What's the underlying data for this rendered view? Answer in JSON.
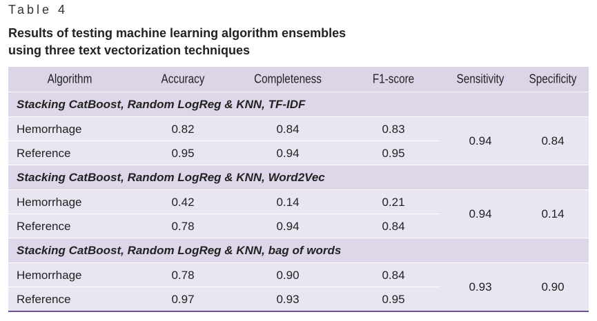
{
  "header": {
    "label": "Table 4",
    "title": [
      "Results of testing machine learning algorithm ensembles",
      "using three text vectorization techniques"
    ]
  },
  "table": {
    "columns": [
      "Algorithm",
      "Accuracy",
      "Completeness",
      "F1-score",
      "Sensitivity",
      "Specificity"
    ],
    "groups": [
      {
        "title": "Stacking CatBoost, Random LogReg & KNN, TF-IDF",
        "rows": [
          [
            "Hemorrhage",
            "0.82",
            "0.84",
            "0.83"
          ],
          [
            "Reference",
            "0.95",
            "0.94",
            "0.95"
          ]
        ],
        "sensitivity": "0.94",
        "specificity": "0.84"
      },
      {
        "title": "Stacking CatBoost, Random LogReg & KNN, Word2Vec",
        "rows": [
          [
            "Hemorrhage",
            "0.42",
            "0.14",
            "0.21"
          ],
          [
            "Reference",
            "0.78",
            "0.94",
            "0.84"
          ]
        ],
        "sensitivity": "0.94",
        "specificity": "0.14"
      },
      {
        "title": "Stacking CatBoost, Random LogReg & KNN, bag of words",
        "rows": [
          [
            "Hemorrhage",
            "0.78",
            "0.90",
            "0.84"
          ],
          [
            "Reference",
            "0.97",
            "0.93",
            "0.95"
          ]
        ],
        "sensitivity": "0.93",
        "specificity": "0.90"
      }
    ]
  }
}
